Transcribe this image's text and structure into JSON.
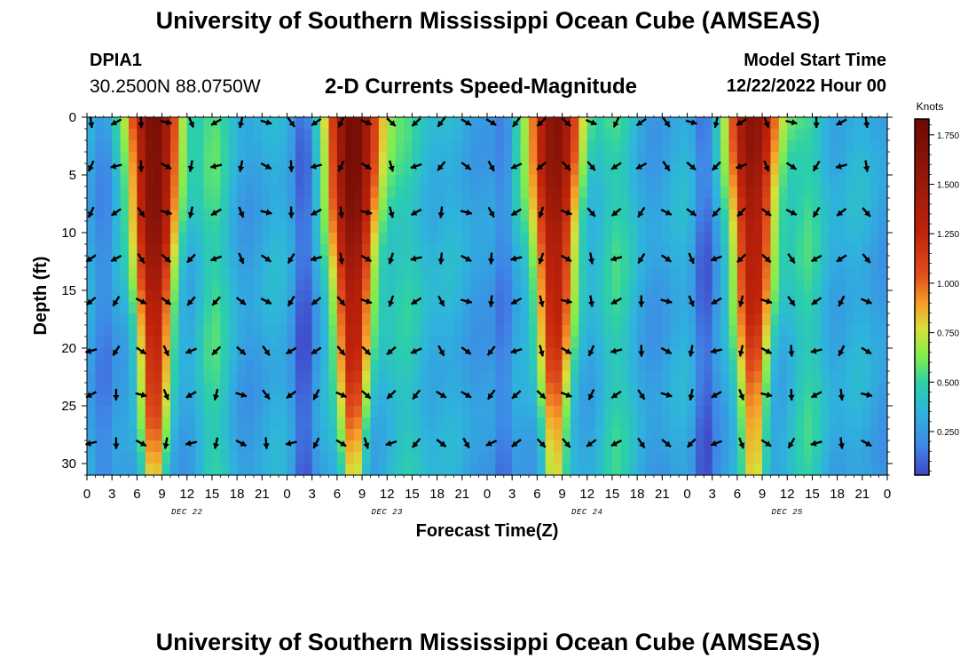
{
  "header": {
    "title": "University of Southern Mississippi Ocean Cube (AMSEAS)",
    "station_id": "DPIA1",
    "station_location": "30.2500N  88.0750W",
    "model_start_label": "Model Start Time",
    "model_start_value": "12/22/2022 Hour 00"
  },
  "footer": {
    "title": "University of Southern Mississippi Ocean Cube (AMSEAS)"
  },
  "chart_data": {
    "type": "heatmap",
    "title": "2-D Currents Speed-Magnitude",
    "xlabel": "Forecast Time(Z)",
    "ylabel": "Depth (ft)",
    "x_range_hours": [
      0,
      96
    ],
    "y_range_ft": [
      0,
      31
    ],
    "x_tick_labels": [
      "0",
      "3",
      "6",
      "9",
      "12",
      "15",
      "18",
      "21",
      "0",
      "3",
      "6",
      "9",
      "12",
      "15",
      "18",
      "21",
      "0",
      "3",
      "6",
      "9",
      "12",
      "15",
      "18",
      "21",
      "0",
      "3",
      "6",
      "9",
      "12",
      "15",
      "18",
      "21",
      "0"
    ],
    "y_ticks": [
      0,
      5,
      10,
      15,
      20,
      25,
      30
    ],
    "y_tick_labels": [
      "0",
      "5",
      "10",
      "15",
      "20",
      "25",
      "30"
    ],
    "day_labels": [
      {
        "label": "DEC 22",
        "hour": 12
      },
      {
        "label": "DEC 23",
        "hour": 36
      },
      {
        "label": "DEC 24",
        "hour": 60
      },
      {
        "label": "DEC 25",
        "hour": 84
      }
    ],
    "colorbar": {
      "unit_label": "Knots",
      "range": [
        0.03,
        1.83
      ],
      "ticks": [
        0.25,
        0.5,
        0.75,
        1.0,
        1.25,
        1.5,
        1.75
      ],
      "tick_labels": [
        "0.250",
        "0.500",
        "0.750",
        "1.000",
        "1.250",
        "1.500",
        "1.750"
      ]
    },
    "speed_peaks": [
      {
        "center_hour": 8.0,
        "peak_knots": 1.72
      },
      {
        "center_hour": 32.0,
        "peak_knots": 1.8
      },
      {
        "center_hour": 56.0,
        "peak_knots": 1.6
      },
      {
        "center_hour": 80.0,
        "peak_knots": 1.55
      }
    ],
    "arrow_grid": {
      "time_step_hours": 3,
      "depths_ft": [
        0.2,
        4,
        8,
        12,
        15.7,
        20,
        23.8,
        28
      ]
    }
  }
}
